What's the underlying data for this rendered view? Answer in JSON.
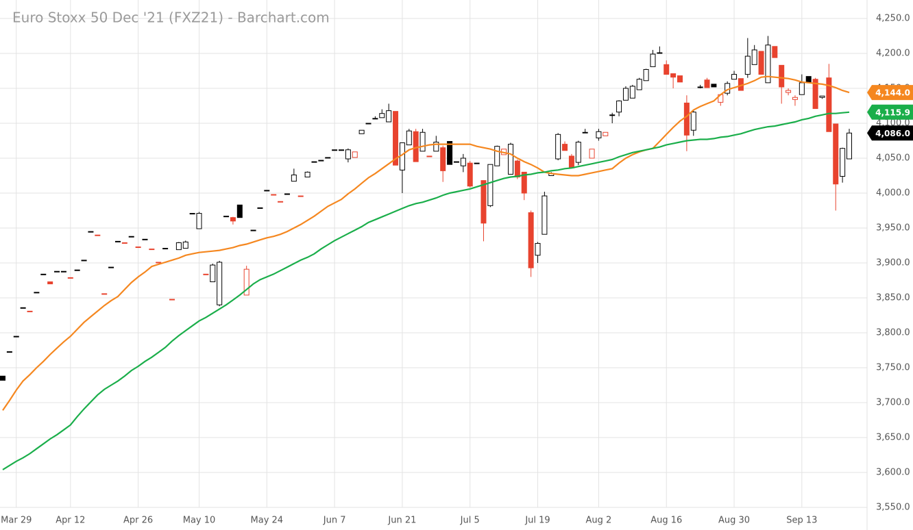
{
  "chart_data": {
    "type": "candlestick",
    "title": "Euro Stoxx 50 Dec '21 (FXZ21) - Barchart.com",
    "categories": [
      null,
      null,
      "Mar 29",
      null,
      null,
      null,
      null,
      null,
      null,
      null,
      "Apr 12",
      null,
      null,
      null,
      null,
      null,
      null,
      null,
      null,
      null,
      "Apr 26",
      null,
      null,
      null,
      null,
      null,
      null,
      null,
      null,
      "May 10",
      null,
      null,
      null,
      null,
      null,
      null,
      null,
      null,
      null,
      "May 24",
      null,
      null,
      null,
      null,
      null,
      null,
      null,
      null,
      null,
      "Jun 7",
      null,
      null,
      null,
      null,
      null,
      null,
      null,
      null,
      null,
      "Jun 21",
      null,
      null,
      null,
      null,
      null,
      null,
      null,
      null,
      null,
      "Jul 5",
      null,
      null,
      null,
      null,
      null,
      null,
      null,
      null,
      null,
      "Jul 19",
      null,
      null,
      null,
      null,
      null,
      null,
      null,
      null,
      "Aug 2",
      null,
      null,
      null,
      null,
      null,
      null,
      null,
      null,
      null,
      "Aug 16",
      null,
      null,
      null,
      null,
      null,
      null,
      null,
      null,
      null,
      "Aug 30",
      null,
      null,
      null,
      null,
      null,
      null,
      null,
      null,
      null,
      "Sep 13",
      null,
      null,
      null,
      null,
      null,
      null,
      null
    ],
    "candles": {
      "up_color": "#000000",
      "down_color": "#e8432e",
      "last_label": "4,086.0",
      "last_color": "#000000",
      "open": [
        3738,
        3773,
        3795,
        3836,
        3831,
        3858,
        3884,
        3873,
        3888,
        3888,
        3879,
        3890,
        3904,
        3945,
        3940,
        3856,
        3894,
        3931,
        3929,
        3938,
        3923,
        3934,
        3920,
        3901,
        3921,
        3848,
        3919,
        3921,
        3971,
        3949,
        3884,
        3873,
        3840,
        3967,
        3965,
        3983,
        3854,
        3947,
        3979,
        4004,
        3998,
        3988,
        3999,
        4017,
        3996,
        4023,
        4045,
        4047,
        4051,
        4062,
        4062,
        4049,
        4051,
        4085,
        4100,
        4107,
        4108,
        4102,
        4117,
        4033,
        4069,
        4088,
        4060,
        4053,
        4060,
        4065,
        4074,
        4045,
        4039,
        4043,
        4043,
        4018,
        3982,
        4039,
        4055,
        4027,
        4046,
        4030,
        3972,
        3911,
        3941,
        4025,
        4049,
        4070,
        4053,
        4044,
        4087,
        4050,
        4079,
        4082,
        4112,
        4116,
        4133,
        4136,
        4148,
        4161,
        4181,
        4201,
        4184,
        4171,
        4168,
        4129,
        4090,
        4152,
        4162,
        4156,
        4130,
        4143,
        4163,
        4164,
        4170,
        4184,
        4203,
        4158,
        4210,
        4183,
        4144,
        4134,
        4141,
        4167,
        4163,
        4137,
        4165,
        4099,
        4024,
        4049
      ],
      "high": [
        3738,
        3773,
        3795,
        3836,
        3831,
        3858,
        3884,
        3873,
        3888,
        3888,
        3879,
        3890,
        3904,
        3945,
        3940,
        3856,
        3894,
        3931,
        3929,
        3938,
        3923,
        3934,
        3920,
        3901,
        3921,
        3848,
        3930,
        3932,
        3971,
        3973,
        3884,
        3899,
        3903,
        3967,
        3966,
        3983,
        3896,
        3947,
        3979,
        4004,
        3998,
        3988,
        3999,
        4035,
        3996,
        4031,
        4045,
        4047,
        4051,
        4062,
        4062,
        4064,
        4059,
        4090,
        4100,
        4110,
        4120,
        4128,
        4117,
        4072,
        4092,
        4092,
        4092,
        4053,
        4082,
        4068,
        4074,
        4045,
        4056,
        4046,
        4043,
        4018,
        4041,
        4068,
        4063,
        4072,
        4048,
        4030,
        3975,
        3930,
        4002,
        4030,
        4086,
        4074,
        4056,
        4075,
        4092,
        4063,
        4092,
        4087,
        4115,
        4133,
        4153,
        4155,
        4165,
        4178,
        4205,
        4210,
        4190,
        4171,
        4168,
        4140,
        4118,
        4155,
        4165,
        4156,
        4141,
        4160,
        4175,
        4164,
        4222,
        4212,
        4203,
        4225,
        4210,
        4183,
        4150,
        4140,
        4170,
        4167,
        4165,
        4139,
        4185,
        4099,
        4065,
        4092
      ],
      "low": [
        3732,
        3773,
        3795,
        3836,
        3831,
        3858,
        3884,
        3870,
        3888,
        3888,
        3879,
        3890,
        3904,
        3945,
        3940,
        3856,
        3894,
        3931,
        3929,
        3938,
        3923,
        3934,
        3920,
        3901,
        3921,
        3848,
        3919,
        3921,
        3971,
        3949,
        3884,
        3873,
        3838,
        3967,
        3955,
        3965,
        3854,
        3947,
        3979,
        4004,
        3998,
        3988,
        3999,
        4017,
        3996,
        4023,
        4045,
        4047,
        4051,
        4062,
        4062,
        4044,
        4051,
        4085,
        4100,
        4107,
        4108,
        4102,
        4040,
        4000,
        4069,
        4045,
        4060,
        4053,
        4060,
        4016,
        4041,
        4045,
        4030,
        4008,
        4043,
        3931,
        3980,
        4039,
        4055,
        4027,
        4020,
        3990,
        3880,
        3900,
        3941,
        4025,
        4047,
        4061,
        4036,
        4040,
        4087,
        4050,
        4075,
        4082,
        4100,
        4110,
        4133,
        4136,
        4148,
        4161,
        4181,
        4201,
        4170,
        4150,
        4159,
        4060,
        4082,
        4150,
        4151,
        4152,
        4125,
        4140,
        4163,
        4147,
        4165,
        4184,
        4170,
        4158,
        4194,
        4128,
        4140,
        4125,
        4141,
        4159,
        4121,
        4135,
        4088,
        3975,
        4015,
        4049
      ],
      "close": [
        3732,
        3773,
        3795,
        3836,
        3831,
        3858,
        3884,
        3870,
        3888,
        3888,
        3879,
        3890,
        3904,
        3945,
        3940,
        3856,
        3894,
        3931,
        3929,
        3938,
        3923,
        3934,
        3920,
        3901,
        3921,
        3848,
        3929,
        3930,
        3971,
        3971,
        3884,
        3897,
        3901,
        3967,
        3960,
        3965,
        3891,
        3947,
        3979,
        4004,
        3998,
        3988,
        3999,
        4026,
        3996,
        4030,
        4045,
        4047,
        4051,
        4062,
        4062,
        4062,
        4059,
        4090,
        4100,
        4107,
        4114,
        4118,
        4040,
        4072,
        4089,
        4045,
        4087,
        4053,
        4073,
        4032,
        4041,
        4045,
        4050,
        4010,
        4043,
        3957,
        4041,
        4067,
        4063,
        4070,
        4023,
        4000,
        3893,
        3928,
        3996,
        4028,
        4084,
        4061,
        4036,
        4073,
        4087,
        4063,
        4088,
        4087,
        4112,
        4132,
        4150,
        4153,
        4163,
        4177,
        4199,
        4201,
        4170,
        4166,
        4159,
        4083,
        4116,
        4152,
        4151,
        4152,
        4141,
        4157,
        4170,
        4147,
        4196,
        4205,
        4170,
        4212,
        4194,
        4152,
        4147,
        4137,
        4158,
        4159,
        4121,
        4139,
        4088,
        4013,
        4064,
        4086
      ]
    },
    "series": [
      {
        "color": "#f5871f",
        "last_label": "4,144.0",
        "values": [
          3689,
          3703,
          3718,
          3731,
          3740,
          3750,
          3759,
          3769,
          3778,
          3787,
          3795,
          3805,
          3815,
          3823,
          3831,
          3839,
          3846,
          3852,
          3862,
          3872,
          3880,
          3887,
          3895,
          3898,
          3901,
          3904,
          3907,
          3911,
          3913,
          3915,
          3916,
          3917,
          3918,
          3920,
          3922,
          3925,
          3927,
          3930,
          3933,
          3936,
          3938,
          3941,
          3945,
          3950,
          3955,
          3961,
          3967,
          3974,
          3981,
          3986,
          3991,
          3999,
          4006,
          4014,
          4022,
          4028,
          4035,
          4042,
          4049,
          4055,
          4062,
          4065,
          4067,
          4069,
          4070,
          4070,
          4070,
          4070,
          4070,
          4070,
          4067,
          4065,
          4063,
          4060,
          4058,
          4056,
          4050,
          4045,
          4041,
          4036,
          4030,
          4028,
          4027,
          4026,
          4025,
          4025,
          4027,
          4029,
          4031,
          4033,
          4035,
          4043,
          4050,
          4055,
          4059,
          4062,
          4064,
          4074,
          4084,
          4094,
          4103,
          4110,
          4119,
          4124,
          4128,
          4132,
          4141,
          4148,
          4151,
          4154,
          4157,
          4161,
          4166,
          4167,
          4166,
          4165,
          4164,
          4162,
          4159,
          4158,
          4157,
          4156,
          4154,
          4151,
          4147,
          4144
        ]
      },
      {
        "color": "#1aae4a",
        "last_label": "4,115.9",
        "values": [
          3604,
          3610,
          3616,
          3621,
          3627,
          3634,
          3641,
          3648,
          3654,
          3661,
          3668,
          3680,
          3691,
          3701,
          3711,
          3719,
          3725,
          3731,
          3738,
          3746,
          3752,
          3759,
          3765,
          3772,
          3779,
          3788,
          3796,
          3803,
          3810,
          3817,
          3822,
          3828,
          3834,
          3840,
          3847,
          3854,
          3862,
          3870,
          3876,
          3880,
          3884,
          3889,
          3894,
          3899,
          3904,
          3908,
          3913,
          3920,
          3926,
          3932,
          3937,
          3942,
          3947,
          3952,
          3958,
          3962,
          3966,
          3970,
          3974,
          3978,
          3982,
          3985,
          3987,
          3990,
          3993,
          3997,
          4000,
          4002,
          4004,
          4006,
          4009,
          4012,
          4015,
          4018,
          4021,
          4023,
          4024,
          4026,
          4027,
          4029,
          4030,
          4032,
          4033,
          4035,
          4036,
          4038,
          4040,
          4042,
          4044,
          4046,
          4048,
          4052,
          4055,
          4058,
          4060,
          4062,
          4064,
          4066,
          4069,
          4071,
          4073,
          4075,
          4076,
          4077,
          4077,
          4078,
          4080,
          4081,
          4083,
          4085,
          4088,
          4091,
          4093,
          4095,
          4096,
          4098,
          4100,
          4102,
          4105,
          4107,
          4110,
          4112,
          4114,
          4114,
          4115,
          4115.9
        ]
      }
    ],
    "ylim": [
      3550,
      4250
    ],
    "yticks": [
      {
        "value": 3550,
        "label": "3,550.0"
      },
      {
        "value": 3600,
        "label": "3,600.0"
      },
      {
        "value": 3650,
        "label": "3,650.0"
      },
      {
        "value": 3700,
        "label": "3,700.0"
      },
      {
        "value": 3750,
        "label": "3,750.0"
      },
      {
        "value": 3800,
        "label": "3,800.0"
      },
      {
        "value": 3850,
        "label": "3,850.0"
      },
      {
        "value": 3900,
        "label": "3,900.0"
      },
      {
        "value": 3950,
        "label": "3,950.0"
      },
      {
        "value": 4000,
        "label": "4,000.0"
      },
      {
        "value": 4050,
        "label": "4,050.0"
      },
      {
        "value": 4100,
        "label": "4,100.0"
      },
      {
        "value": 4150,
        "label": "4,150.0"
      },
      {
        "value": 4200,
        "label": "4,200.0"
      },
      {
        "value": 4250,
        "label": "4,250.0"
      }
    ],
    "grid": true
  }
}
